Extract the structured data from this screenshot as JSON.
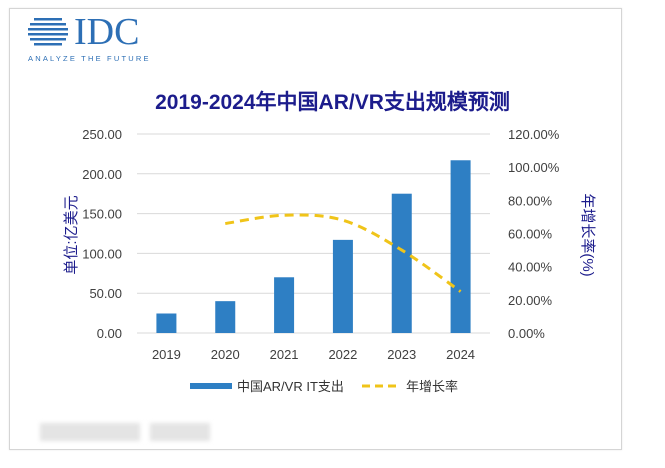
{
  "logo": {
    "text": "IDC",
    "tagline": "ANALYZE THE FUTURE"
  },
  "chart_data": {
    "type": "bar",
    "title": "2019-2024年中国AR/VR支出规模预测",
    "categories": [
      "2019",
      "2020",
      "2021",
      "2022",
      "2023",
      "2024"
    ],
    "ylabel": "单位:亿美元",
    "y2label": "年增长率(%)",
    "ylim": [
      0,
      250
    ],
    "y2lim": [
      0,
      1.2
    ],
    "y_ticks": [
      "0.00",
      "50.00",
      "100.00",
      "150.00",
      "200.00",
      "250.00"
    ],
    "y2_ticks": [
      "0.00%",
      "20.00%",
      "40.00%",
      "60.00%",
      "80.00%",
      "100.00%",
      "120.00%"
    ],
    "grid": true,
    "legend_position": "bottom",
    "series": [
      {
        "name": "中国AR/VR IT支出",
        "kind": "bar",
        "axis": "left",
        "color": "#2e7fc4",
        "values": [
          24.5,
          40,
          70,
          117,
          175,
          217
        ]
      },
      {
        "name": "年增长率",
        "kind": "line",
        "axis": "right",
        "style": "dashed",
        "color": "#f0c419",
        "values": [
          null,
          0.66,
          0.71,
          0.68,
          0.5,
          0.25
        ]
      }
    ]
  }
}
